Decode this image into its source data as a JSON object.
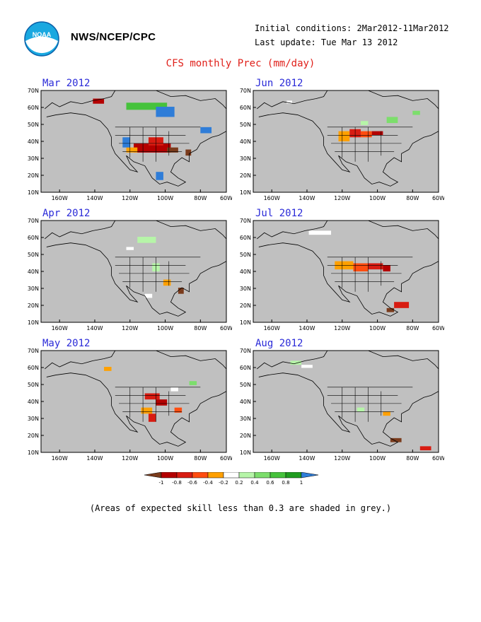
{
  "header": {
    "org": "NWS/NCEP/CPC",
    "initial_conditions": "Initial conditions: 2Mar2012-11Mar2012",
    "last_update": "Last update: Tue Mar 13 2012",
    "logo_text": "NOAA"
  },
  "title": "CFS monthly Prec (mm/day)",
  "axes": {
    "lat_labels": [
      "70N",
      "60N",
      "50N",
      "40N",
      "30N",
      "20N",
      "10N"
    ],
    "lon_labels": [
      "160W",
      "140W",
      "120W",
      "100W",
      "80W",
      "60W"
    ]
  },
  "panels": [
    {
      "id": "mar",
      "title": "Mar 2012"
    },
    {
      "id": "jun",
      "title": "Jun 2012"
    },
    {
      "id": "apr",
      "title": "Apr 2012"
    },
    {
      "id": "jul",
      "title": "Jul 2012"
    },
    {
      "id": "may",
      "title": "May 2012"
    },
    {
      "id": "aug",
      "title": "Aug 2012"
    }
  ],
  "colorbar": {
    "labels": [
      "-1",
      "-0.8",
      "-0.6",
      "-0.4",
      "-0.2",
      "0.2",
      "0.4",
      "0.6",
      "0.8",
      "1"
    ],
    "colors": [
      "#7a3b1c",
      "#b40000",
      "#d81c12",
      "#ff4d10",
      "#ffa000",
      "#ffffff",
      "#b6f5a8",
      "#7cde6c",
      "#46c23c",
      "#1f9c1f",
      "#2f7dd8"
    ]
  },
  "colors": {
    "ocean": "#c0c0c0",
    "land": "#c0c0c0",
    "title": "#e0201a",
    "panel_title": "#2a2ad8"
  },
  "note": "(Areas of expected skill less than 0.3 are shaded in grey.)"
}
